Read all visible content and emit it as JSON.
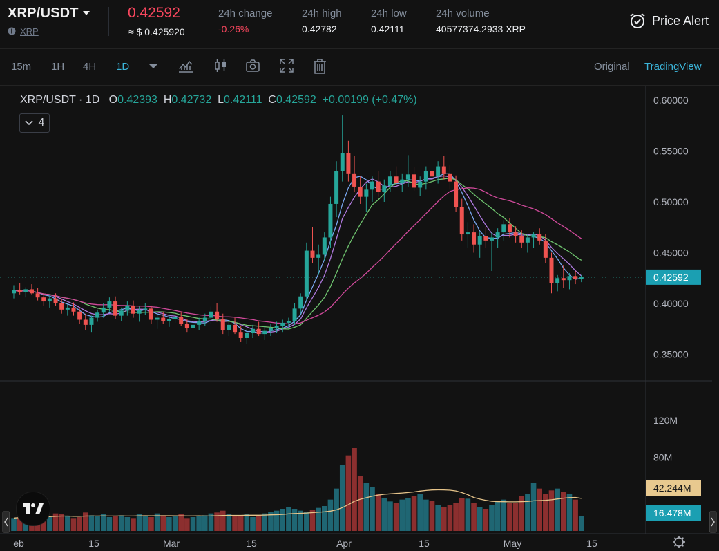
{
  "header": {
    "pair": "XRP/USDT",
    "asset": "XRP",
    "last_price": "0.42592",
    "usd_price": "≈ $ 0.425920",
    "stats": [
      {
        "label": "24h change",
        "value": "-0.26%"
      },
      {
        "label": "24h high",
        "value": "0.42782"
      },
      {
        "label": "24h low",
        "value": "0.42111"
      },
      {
        "label": "24h volume",
        "value": "40577374.2933 XRP"
      }
    ],
    "price_alert_label": "Price Alert"
  },
  "toolbar": {
    "intervals": [
      "15m",
      "1H",
      "4H",
      "1D"
    ],
    "active_interval": "1D",
    "views": [
      "Original",
      "TradingView"
    ],
    "active_view": "TradingView",
    "icons": [
      "dropdown-caret-icon",
      "indicators-icon",
      "candle-style-icon",
      "camera-icon",
      "fullscreen-icon",
      "trash-icon"
    ]
  },
  "legend": {
    "symbol": "XRP/USDT · 1D",
    "o_label": "O",
    "o": "0.42393",
    "h_label": "H",
    "h": "0.42732",
    "l_label": "L",
    "l": "0.42111",
    "c_label": "C",
    "c": "0.42592",
    "change": "+0.00199 (+0.47%)",
    "indicator_count": "4"
  },
  "colors": {
    "up": "#26a69a",
    "down": "#ef5350",
    "ma_blue": "#7aa7f0",
    "ma_purple": "#b07ae0",
    "ma_green": "#6fc46f",
    "ma_pink": "#d24a9c",
    "vol_ma": "#e6c48a"
  },
  "chart_data": {
    "type": "candlestick",
    "price_axis_ticks": [
      "0.60000",
      "0.55000",
      "0.50000",
      "0.45000",
      "0.40000",
      "0.35000"
    ],
    "volume_axis_ticks": [
      "120M",
      "80M"
    ],
    "x_ticks": [
      "eb",
      "15",
      "Mar",
      "15",
      "Apr",
      "15",
      "May",
      "15"
    ],
    "last_price_label": "0.42592",
    "volume_ma_label": "42.244M",
    "volume_last_label": "16.478M",
    "ylim": [
      0.33,
      0.615
    ],
    "volume_ylim": [
      0,
      150
    ],
    "ohlc": [
      [
        0.41,
        0.418,
        0.405,
        0.413
      ],
      [
        0.413,
        0.42,
        0.409,
        0.411
      ],
      [
        0.411,
        0.416,
        0.406,
        0.414
      ],
      [
        0.414,
        0.419,
        0.409,
        0.41
      ],
      [
        0.41,
        0.415,
        0.403,
        0.406
      ],
      [
        0.406,
        0.41,
        0.398,
        0.402
      ],
      [
        0.402,
        0.408,
        0.396,
        0.405
      ],
      [
        0.405,
        0.41,
        0.398,
        0.4
      ],
      [
        0.4,
        0.404,
        0.39,
        0.394
      ],
      [
        0.394,
        0.399,
        0.388,
        0.396
      ],
      [
        0.396,
        0.401,
        0.388,
        0.392
      ],
      [
        0.392,
        0.395,
        0.38,
        0.384
      ],
      [
        0.384,
        0.39,
        0.374,
        0.379
      ],
      [
        0.379,
        0.388,
        0.372,
        0.386
      ],
      [
        0.386,
        0.394,
        0.382,
        0.391
      ],
      [
        0.391,
        0.4,
        0.386,
        0.396
      ],
      [
        0.396,
        0.406,
        0.392,
        0.402
      ],
      [
        0.402,
        0.407,
        0.385,
        0.388
      ],
      [
        0.388,
        0.396,
        0.383,
        0.393
      ],
      [
        0.393,
        0.402,
        0.388,
        0.398
      ],
      [
        0.398,
        0.403,
        0.386,
        0.39
      ],
      [
        0.39,
        0.397,
        0.382,
        0.394
      ],
      [
        0.394,
        0.4,
        0.389,
        0.395
      ],
      [
        0.395,
        0.398,
        0.38,
        0.384
      ],
      [
        0.384,
        0.39,
        0.375,
        0.386
      ],
      [
        0.386,
        0.392,
        0.38,
        0.383
      ],
      [
        0.383,
        0.389,
        0.377,
        0.385
      ],
      [
        0.385,
        0.391,
        0.381,
        0.387
      ],
      [
        0.387,
        0.392,
        0.378,
        0.38
      ],
      [
        0.38,
        0.385,
        0.372,
        0.376
      ],
      [
        0.376,
        0.383,
        0.37,
        0.379
      ],
      [
        0.379,
        0.386,
        0.374,
        0.383
      ],
      [
        0.383,
        0.39,
        0.378,
        0.386
      ],
      [
        0.386,
        0.397,
        0.38,
        0.392
      ],
      [
        0.392,
        0.4,
        0.382,
        0.385
      ],
      [
        0.385,
        0.39,
        0.37,
        0.374
      ],
      [
        0.374,
        0.382,
        0.368,
        0.379
      ],
      [
        0.379,
        0.386,
        0.37,
        0.372
      ],
      [
        0.372,
        0.378,
        0.362,
        0.366
      ],
      [
        0.366,
        0.375,
        0.36,
        0.371
      ],
      [
        0.371,
        0.379,
        0.366,
        0.375
      ],
      [
        0.375,
        0.382,
        0.368,
        0.37
      ],
      [
        0.37,
        0.378,
        0.364,
        0.373
      ],
      [
        0.373,
        0.38,
        0.368,
        0.376
      ],
      [
        0.376,
        0.382,
        0.371,
        0.378
      ],
      [
        0.378,
        0.384,
        0.372,
        0.381
      ],
      [
        0.381,
        0.386,
        0.375,
        0.383
      ],
      [
        0.383,
        0.4,
        0.379,
        0.395
      ],
      [
        0.395,
        0.41,
        0.39,
        0.407
      ],
      [
        0.407,
        0.46,
        0.402,
        0.452
      ],
      [
        0.452,
        0.475,
        0.44,
        0.445
      ],
      [
        0.445,
        0.458,
        0.428,
        0.448
      ],
      [
        0.448,
        0.47,
        0.442,
        0.465
      ],
      [
        0.465,
        0.505,
        0.455,
        0.498
      ],
      [
        0.498,
        0.54,
        0.485,
        0.53
      ],
      [
        0.53,
        0.585,
        0.52,
        0.548
      ],
      [
        0.548,
        0.56,
        0.52,
        0.528
      ],
      [
        0.528,
        0.545,
        0.51,
        0.515
      ],
      [
        0.515,
        0.525,
        0.498,
        0.505
      ],
      [
        0.505,
        0.518,
        0.49,
        0.512
      ],
      [
        0.512,
        0.525,
        0.5,
        0.52
      ],
      [
        0.52,
        0.53,
        0.505,
        0.51
      ],
      [
        0.51,
        0.522,
        0.5,
        0.516
      ],
      [
        0.516,
        0.53,
        0.51,
        0.525
      ],
      [
        0.525,
        0.535,
        0.515,
        0.519
      ],
      [
        0.519,
        0.528,
        0.51,
        0.522
      ],
      [
        0.522,
        0.546,
        0.515,
        0.527
      ],
      [
        0.527,
        0.534,
        0.511,
        0.514
      ],
      [
        0.514,
        0.525,
        0.506,
        0.52
      ],
      [
        0.52,
        0.535,
        0.512,
        0.53
      ],
      [
        0.53,
        0.538,
        0.52,
        0.525
      ],
      [
        0.525,
        0.54,
        0.518,
        0.535
      ],
      [
        0.535,
        0.545,
        0.522,
        0.528
      ],
      [
        0.528,
        0.536,
        0.512,
        0.52
      ],
      [
        0.52,
        0.526,
        0.49,
        0.495
      ],
      [
        0.495,
        0.503,
        0.462,
        0.468
      ],
      [
        0.468,
        0.48,
        0.455,
        0.47
      ],
      [
        0.47,
        0.478,
        0.45,
        0.458
      ],
      [
        0.458,
        0.47,
        0.445,
        0.466
      ],
      [
        0.466,
        0.475,
        0.455,
        0.462
      ],
      [
        0.462,
        0.47,
        0.432,
        0.465
      ],
      [
        0.465,
        0.474,
        0.455,
        0.47
      ],
      [
        0.47,
        0.482,
        0.462,
        0.478
      ],
      [
        0.478,
        0.484,
        0.465,
        0.47
      ],
      [
        0.47,
        0.476,
        0.46,
        0.466
      ],
      [
        0.466,
        0.472,
        0.455,
        0.46
      ],
      [
        0.46,
        0.468,
        0.45,
        0.465
      ],
      [
        0.465,
        0.47,
        0.455,
        0.468
      ],
      [
        0.468,
        0.474,
        0.458,
        0.462
      ],
      [
        0.462,
        0.468,
        0.44,
        0.445
      ],
      [
        0.445,
        0.45,
        0.41,
        0.42
      ],
      [
        0.42,
        0.428,
        0.412,
        0.425
      ],
      [
        0.425,
        0.438,
        0.415,
        0.423
      ],
      [
        0.423,
        0.43,
        0.414,
        0.427
      ],
      [
        0.427,
        0.432,
        0.419,
        0.424
      ],
      [
        0.424,
        0.428,
        0.421,
        0.426
      ]
    ],
    "volume": [
      14,
      15,
      13,
      18,
      16,
      17,
      15,
      19,
      18,
      16,
      14,
      15,
      20,
      17,
      16,
      18,
      15,
      16,
      17,
      15,
      14,
      18,
      16,
      15,
      19,
      17,
      15,
      16,
      18,
      14,
      15,
      16,
      17,
      19,
      20,
      22,
      18,
      17,
      16,
      18,
      15,
      17,
      19,
      21,
      22,
      24,
      26,
      24,
      22,
      21,
      23,
      25,
      27,
      34,
      46,
      72,
      82,
      90,
      60,
      52,
      48,
      40,
      36,
      32,
      30,
      34,
      36,
      38,
      40,
      34,
      33,
      28,
      26,
      28,
      30,
      36,
      35,
      30,
      26,
      24,
      28,
      32,
      34,
      30,
      30,
      38,
      40,
      52,
      46,
      40,
      44,
      46,
      42,
      40,
      34,
      16
    ],
    "vol_down_idx": [
      55,
      56,
      58,
      60,
      63,
      64,
      66,
      68,
      70,
      72,
      73,
      75,
      76,
      78,
      81,
      84,
      86,
      87,
      89,
      91,
      92
    ]
  }
}
